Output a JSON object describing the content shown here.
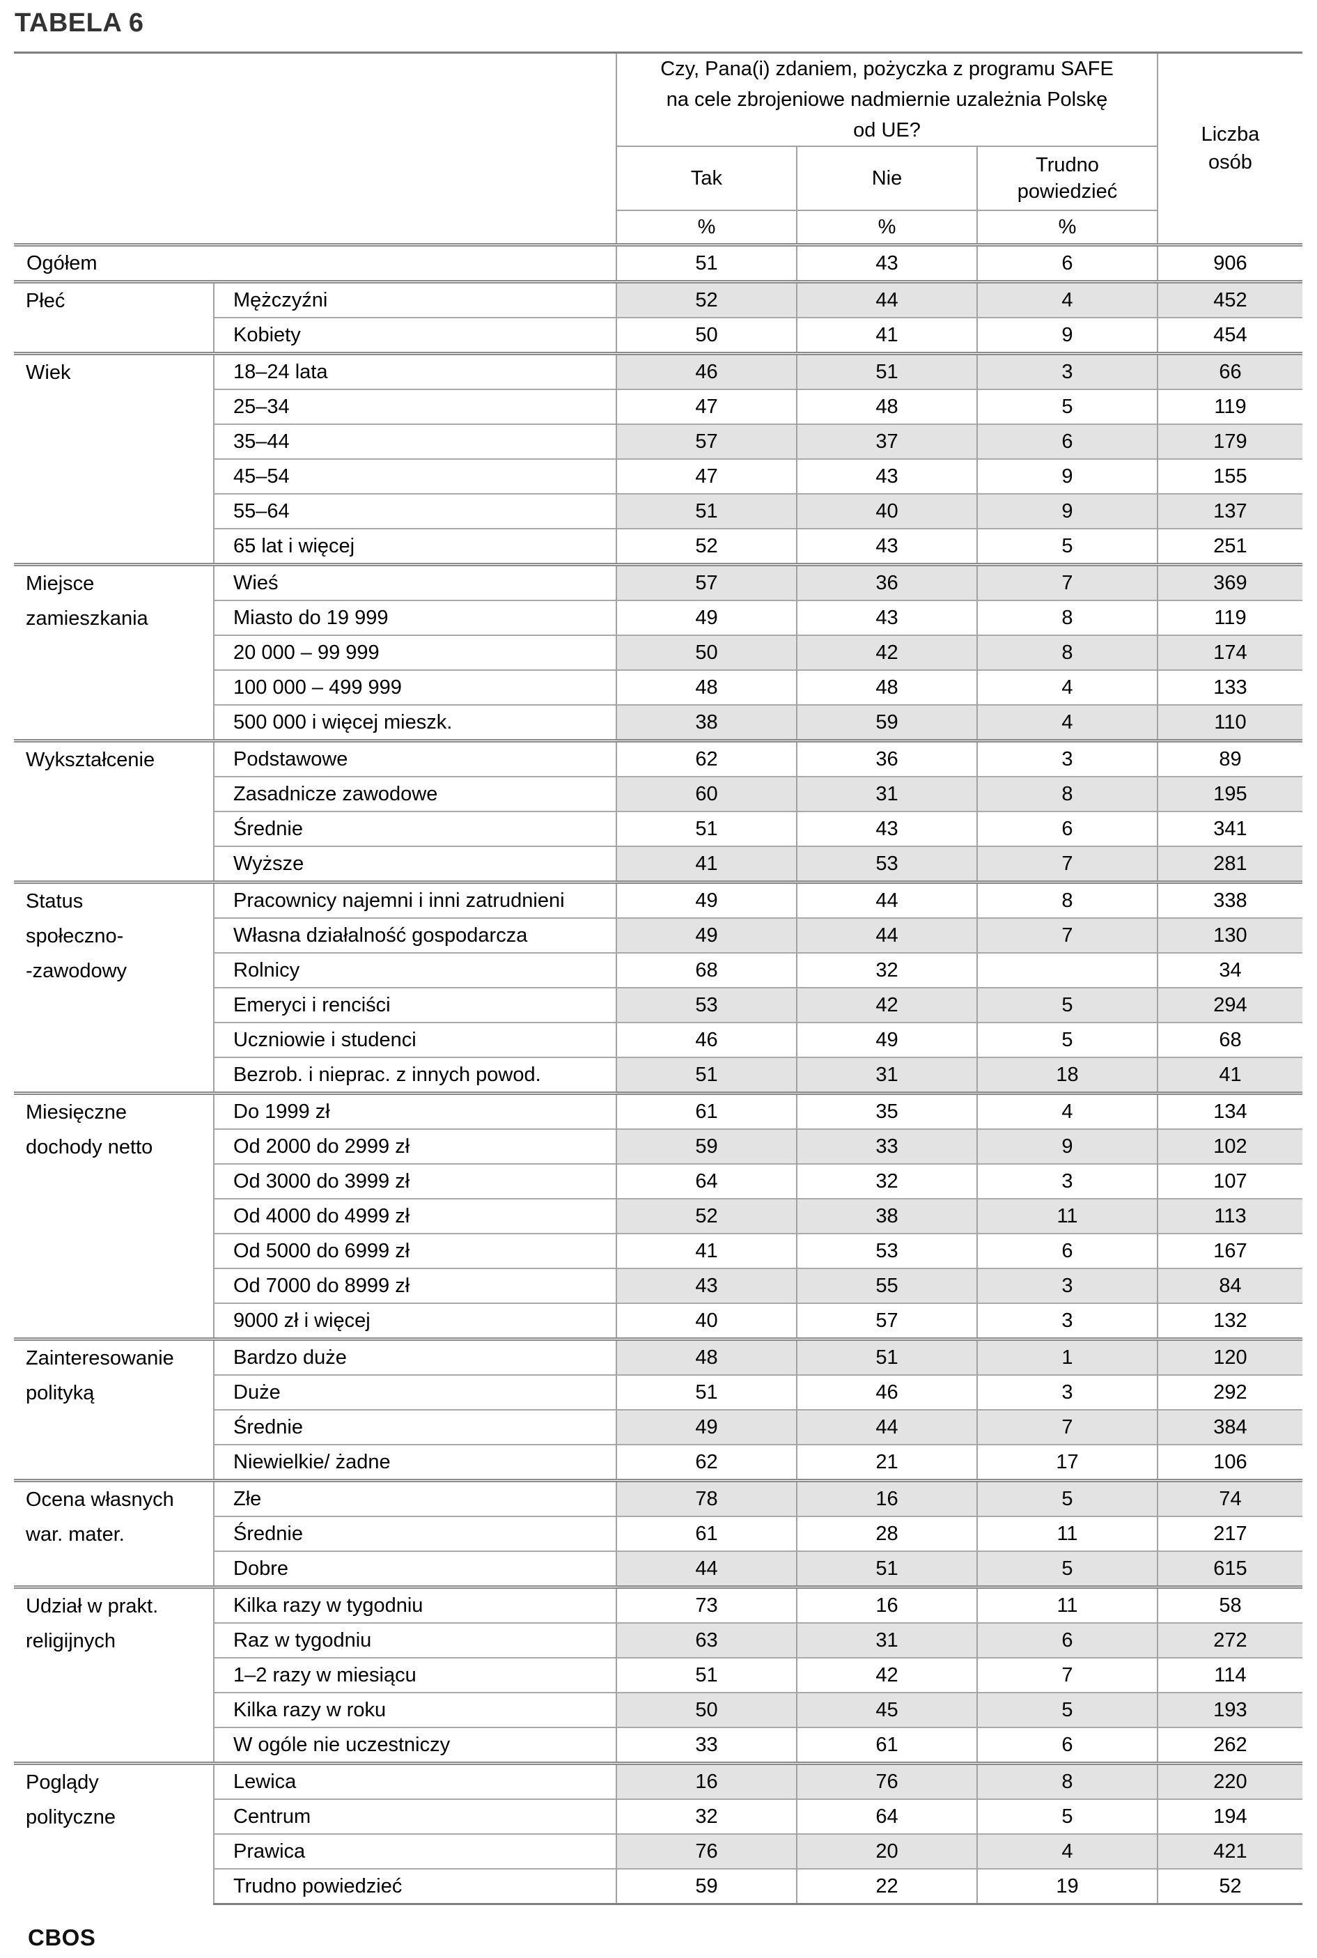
{
  "title": "TABELA 6",
  "footer_logo": "CBOS",
  "table": {
    "question": "Czy, Pana(i) zdaniem, pożyczka z programu SAFE\nna cele zbrojeniowe nadmiernie uzależnia Polskę\nod UE?",
    "answers": [
      "Tak",
      "Nie",
      "Trudno\npowiedzieć"
    ],
    "percent": "%",
    "count_header": "Liczba\nosób",
    "groups": [
      {
        "category": null,
        "rows": [
          {
            "label": "Ogółem",
            "tak": "51",
            "nie": "43",
            "trudno": "6",
            "n": "906"
          }
        ]
      },
      {
        "category": "Płeć",
        "rows": [
          {
            "label": "Mężczyźni",
            "tak": "52",
            "nie": "44",
            "trudno": "4",
            "n": "452"
          },
          {
            "label": "Kobiety",
            "tak": "50",
            "nie": "41",
            "trudno": "9",
            "n": "454"
          }
        ]
      },
      {
        "category": "Wiek",
        "rows": [
          {
            "label": "18–24 lata",
            "tak": "46",
            "nie": "51",
            "trudno": "3",
            "n": "66"
          },
          {
            "label": "25–34",
            "tak": "47",
            "nie": "48",
            "trudno": "5",
            "n": "119"
          },
          {
            "label": "35–44",
            "tak": "57",
            "nie": "37",
            "trudno": "6",
            "n": "179"
          },
          {
            "label": "45–54",
            "tak": "47",
            "nie": "43",
            "trudno": "9",
            "n": "155"
          },
          {
            "label": "55–64",
            "tak": "51",
            "nie": "40",
            "trudno": "9",
            "n": "137"
          },
          {
            "label": "65 lat i więcej",
            "tak": "52",
            "nie": "43",
            "trudno": "5",
            "n": "251"
          }
        ]
      },
      {
        "category": "Miejsce\nzamieszkania",
        "rows": [
          {
            "label": "Wieś",
            "tak": "57",
            "nie": "36",
            "trudno": "7",
            "n": "369"
          },
          {
            "label": "Miasto do 19 999",
            "tak": "49",
            "nie": "43",
            "trudno": "8",
            "n": "119"
          },
          {
            "label": "20 000 – 99 999",
            "tak": "50",
            "nie": "42",
            "trudno": "8",
            "n": "174"
          },
          {
            "label": "100 000 – 499 999",
            "tak": "48",
            "nie": "48",
            "trudno": "4",
            "n": "133"
          },
          {
            "label": "500 000 i więcej mieszk.",
            "tak": "38",
            "nie": "59",
            "trudno": "4",
            "n": "110"
          }
        ]
      },
      {
        "category": "Wykształcenie",
        "rows": [
          {
            "label": "Podstawowe",
            "tak": "62",
            "nie": "36",
            "trudno": "3",
            "n": "89"
          },
          {
            "label": "Zasadnicze zawodowe",
            "tak": "60",
            "nie": "31",
            "trudno": "8",
            "n": "195"
          },
          {
            "label": "Średnie",
            "tak": "51",
            "nie": "43",
            "trudno": "6",
            "n": "341"
          },
          {
            "label": "Wyższe",
            "tak": "41",
            "nie": "53",
            "trudno": "7",
            "n": "281"
          }
        ]
      },
      {
        "category": "Status\nspołeczno-\n-zawodowy",
        "rows": [
          {
            "label": "Pracownicy najemni i inni zatrudnieni",
            "tak": "49",
            "nie": "44",
            "trudno": "8",
            "n": "338"
          },
          {
            "label": "Własna działalność gospodarcza",
            "tak": "49",
            "nie": "44",
            "trudno": "7",
            "n": "130"
          },
          {
            "label": "Rolnicy",
            "tak": "68",
            "nie": "32",
            "trudno": "",
            "n": "34"
          },
          {
            "label": "Emeryci i renciści",
            "tak": "53",
            "nie": "42",
            "trudno": "5",
            "n": "294"
          },
          {
            "label": "Uczniowie i studenci",
            "tak": "46",
            "nie": "49",
            "trudno": "5",
            "n": "68"
          },
          {
            "label": "Bezrob. i nieprac. z innych powod.",
            "tak": "51",
            "nie": "31",
            "trudno": "18",
            "n": "41"
          }
        ]
      },
      {
        "category": "Miesięczne\ndochody netto",
        "rows": [
          {
            "label": "Do 1999 zł",
            "tak": "61",
            "nie": "35",
            "trudno": "4",
            "n": "134"
          },
          {
            "label": "Od 2000 do 2999 zł",
            "tak": "59",
            "nie": "33",
            "trudno": "9",
            "n": "102"
          },
          {
            "label": "Od 3000 do 3999 zł",
            "tak": "64",
            "nie": "32",
            "trudno": "3",
            "n": "107"
          },
          {
            "label": "Od 4000 do 4999 zł",
            "tak": "52",
            "nie": "38",
            "trudno": "11",
            "n": "113"
          },
          {
            "label": "Od 5000 do 6999 zł",
            "tak": "41",
            "nie": "53",
            "trudno": "6",
            "n": "167"
          },
          {
            "label": "Od 7000 do 8999 zł",
            "tak": "43",
            "nie": "55",
            "trudno": "3",
            "n": "84"
          },
          {
            "label": "9000 zł i więcej",
            "tak": "40",
            "nie": "57",
            "trudno": "3",
            "n": "132"
          }
        ]
      },
      {
        "category": "Zainteresowanie\npolityką",
        "rows": [
          {
            "label": "Bardzo duże",
            "tak": "48",
            "nie": "51",
            "trudno": "1",
            "n": "120"
          },
          {
            "label": "Duże",
            "tak": "51",
            "nie": "46",
            "trudno": "3",
            "n": "292"
          },
          {
            "label": "Średnie",
            "tak": "49",
            "nie": "44",
            "trudno": "7",
            "n": "384"
          },
          {
            "label": "Niewielkie/ żadne",
            "tak": "62",
            "nie": "21",
            "trudno": "17",
            "n": "106"
          }
        ]
      },
      {
        "category": "Ocena własnych\nwar. mater.",
        "rows": [
          {
            "label": "Złe",
            "tak": "78",
            "nie": "16",
            "trudno": "5",
            "n": "74"
          },
          {
            "label": "Średnie",
            "tak": "61",
            "nie": "28",
            "trudno": "11",
            "n": "217"
          },
          {
            "label": "Dobre",
            "tak": "44",
            "nie": "51",
            "trudno": "5",
            "n": "615"
          }
        ]
      },
      {
        "category": "Udział w prakt.\nreligijnych",
        "rows": [
          {
            "label": "Kilka razy w tygodniu",
            "tak": "73",
            "nie": "16",
            "trudno": "11",
            "n": "58"
          },
          {
            "label": "Raz w tygodniu",
            "tak": "63",
            "nie": "31",
            "trudno": "6",
            "n": "272"
          },
          {
            "label": "1–2 razy w miesiącu",
            "tak": "51",
            "nie": "42",
            "trudno": "7",
            "n": "114"
          },
          {
            "label": "Kilka razy w roku",
            "tak": "50",
            "nie": "45",
            "trudno": "5",
            "n": "193"
          },
          {
            "label": "W ogóle nie uczestniczy",
            "tak": "33",
            "nie": "61",
            "trudno": "6",
            "n": "262"
          }
        ]
      },
      {
        "category": "Poglądy\npolityczne",
        "rows": [
          {
            "label": "Lewica",
            "tak": "16",
            "nie": "76",
            "trudno": "8",
            "n": "220"
          },
          {
            "label": "Centrum",
            "tak": "32",
            "nie": "64",
            "trudno": "5",
            "n": "194"
          },
          {
            "label": "Prawica",
            "tak": "76",
            "nie": "20",
            "trudno": "4",
            "n": "421"
          },
          {
            "label": "Trudno powiedzieć",
            "tak": "59",
            "nie": "22",
            "trudno": "19",
            "n": "52"
          }
        ]
      }
    ]
  }
}
